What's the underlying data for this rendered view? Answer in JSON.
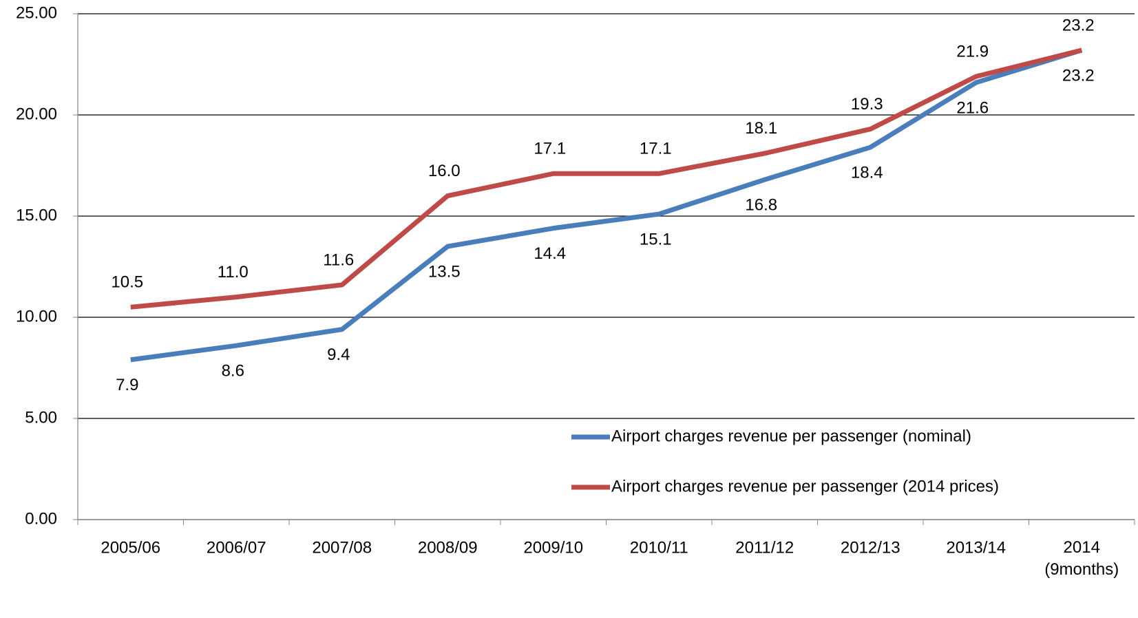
{
  "chart_data": {
    "type": "line",
    "categories": [
      "2005/06",
      "2006/07",
      "2007/08",
      "2008/09",
      "2009/10",
      "2010/11",
      "2011/12",
      "2012/13",
      "2013/14",
      "2014 (9months)"
    ],
    "series": [
      {
        "name": "Airport charges revenue per passenger (nominal)",
        "color": "#4a7ebb",
        "values": [
          7.9,
          8.6,
          9.4,
          13.5,
          14.4,
          15.1,
          16.8,
          18.4,
          21.6,
          23.2
        ],
        "value_labels": [
          "7.9",
          "8.6",
          "9.4",
          "13.5",
          "14.4",
          "15.1",
          "16.8",
          "18.4",
          "21.6",
          "23.2"
        ]
      },
      {
        "name": "Airport charges revenue per passenger (2014 prices)",
        "color": "#be4b48",
        "values": [
          10.5,
          11.0,
          11.6,
          16.0,
          17.1,
          17.1,
          18.1,
          19.3,
          21.9,
          23.2
        ],
        "value_labels": [
          "10.5",
          "11.0",
          "11.6",
          "16.0",
          "17.1",
          "17.1",
          "18.1",
          "19.3",
          "21.9",
          "23.2"
        ]
      }
    ],
    "ylim": [
      0,
      25
    ],
    "yticks": [
      {
        "value": 0,
        "label": "0.00"
      },
      {
        "value": 5,
        "label": "5.00"
      },
      {
        "value": 10,
        "label": "10.00"
      },
      {
        "value": 15,
        "label": "15.00"
      },
      {
        "value": 20,
        "label": "20.00"
      },
      {
        "value": 25,
        "label": "25.00"
      }
    ],
    "grid": true,
    "legend": "lower right"
  }
}
